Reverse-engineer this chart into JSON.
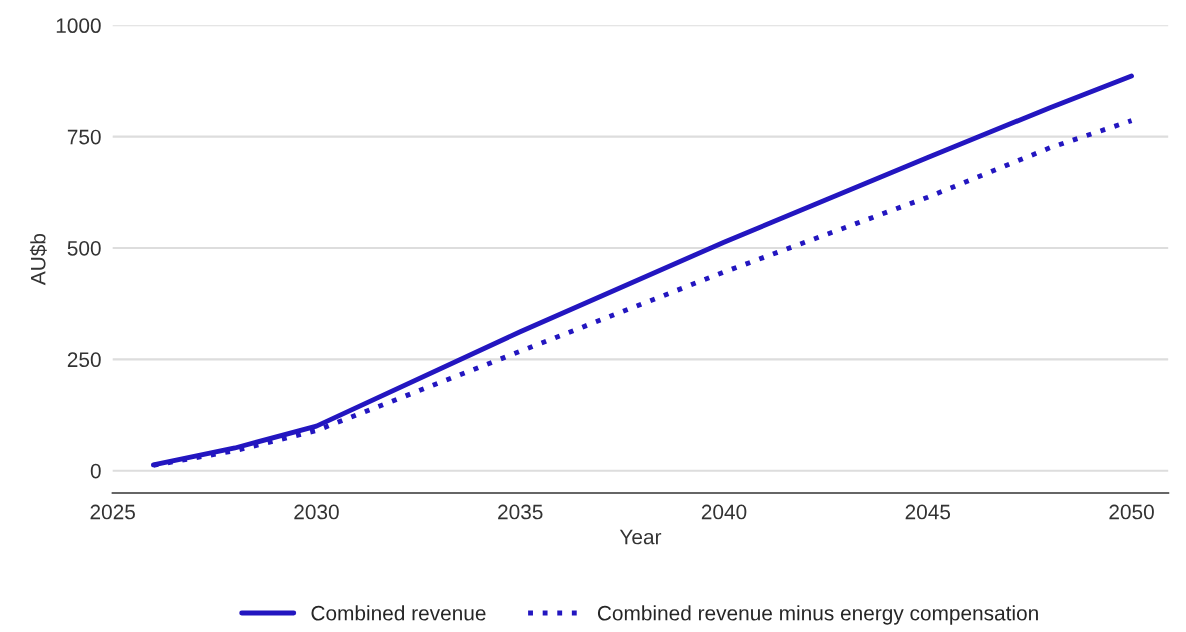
{
  "chart_data": {
    "type": "line",
    "xlabel": "Year",
    "ylabel": "AU$b",
    "x": [
      2026,
      2028,
      2030,
      2035,
      2040,
      2045,
      2048,
      2050
    ],
    "series": [
      {
        "name": "Combined revenue",
        "color": "#2316c0",
        "line_style": "solid",
        "values": [
          13,
          51,
          100,
          312,
          513,
          703,
          815,
          886
        ]
      },
      {
        "name": "Combined revenue minus energy compensation",
        "color": "#2316c0",
        "line_style": "dotted",
        "values": [
          12,
          45,
          90,
          268,
          446,
          614,
          725,
          786
        ]
      }
    ],
    "xlim": [
      2025,
      2050.9
    ],
    "xticks": [
      2025,
      2030,
      2035,
      2040,
      2045,
      2050
    ],
    "ylim": [
      -50,
      1000
    ],
    "yticks": [
      0,
      250,
      500,
      750,
      1000
    ],
    "grid": "y",
    "legend": "bottom",
    "marker": "none"
  }
}
